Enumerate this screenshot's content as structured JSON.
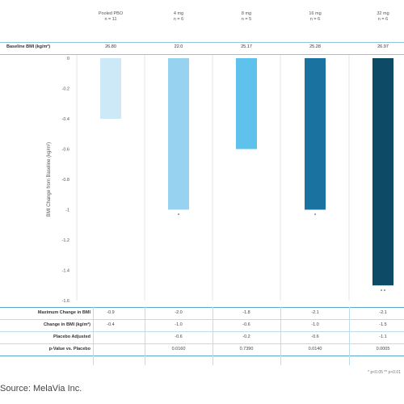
{
  "columns": [
    {
      "label": "Pooled PBO",
      "n": "n = 11",
      "baseline": "26.80"
    },
    {
      "label": "4 mg",
      "n": "n = 6",
      "baseline": "22.0"
    },
    {
      "label": "8 mg",
      "n": "n = 5",
      "baseline": "25.17"
    },
    {
      "label": "16 mg",
      "n": "n = 6",
      "baseline": "25.28"
    },
    {
      "label": "32 mg",
      "n": "n = 6",
      "baseline": "26.97"
    }
  ],
  "baseline_label": "Baseline BMI (kg/m²)",
  "chart_data": {
    "type": "bar",
    "categories": [
      "Pooled PBO",
      "4 mg",
      "8 mg",
      "16 mg",
      "32 mg"
    ],
    "values": [
      -0.4,
      -1.0,
      -0.6,
      -1.0,
      -1.5
    ],
    "colors": [
      "#cde9f8",
      "#97d3f1",
      "#5fc2ec",
      "#19729f",
      "#0c4a66"
    ],
    "ylabel": "BMI Change from Baseline (kg/m²)",
    "ylim": [
      -1.6,
      0
    ],
    "yticks": [
      {
        "v": 0,
        "label": "0"
      },
      {
        "v": -0.2,
        "label": "-0.2"
      },
      {
        "v": -0.4,
        "label": "-0.4"
      },
      {
        "v": -0.6,
        "label": "-0.6"
      },
      {
        "v": -0.8,
        "label": "-0.8"
      },
      {
        "v": -1.0,
        "label": "-1"
      },
      {
        "v": -1.2,
        "label": "-1.2"
      },
      {
        "v": -1.4,
        "label": "-1.4"
      },
      {
        "v": -1.6,
        "label": "-1.6"
      }
    ],
    "annotations": [
      "",
      "*",
      "",
      "*",
      "* *"
    ],
    "grid": "vertical"
  },
  "table": {
    "rows": [
      {
        "label": "Maximum Change in BMI",
        "values": [
          "-0.9",
          "-2.0",
          "-1.8",
          "-2.1",
          "-2.1"
        ]
      },
      {
        "label": "Change in BMI (kg/m²)",
        "values": [
          "-0.4",
          "-1.0",
          "-0.6",
          "-1.0",
          "-1.5"
        ]
      },
      {
        "label": "Placebo Adjusted",
        "values": [
          "",
          "-0.6",
          "-0.2",
          "-0.6",
          "-1.1"
        ]
      },
      {
        "label": "p-Value vs. Placebo",
        "values": [
          "",
          "0.0160",
          "0.7390",
          "0.0140",
          "0.0005"
        ]
      }
    ]
  },
  "footnote": "* p<0.05   ** p<0.01",
  "source": "Source: MelaVia Inc."
}
